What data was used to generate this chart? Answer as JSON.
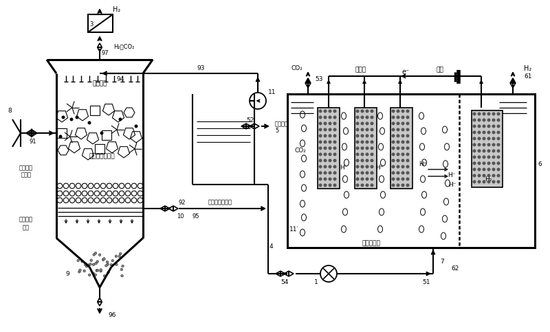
{
  "bg_color": "#ffffff",
  "labels": {
    "H2_top": "H₂",
    "H2CO2": "H₂＋CO₂",
    "n97": "97",
    "n3": "3",
    "n8": "8",
    "n94": "94",
    "n93": "93",
    "n11": "11",
    "n52": "52",
    "n91": "91",
    "n10": "10",
    "n92": "92",
    "n9": "9",
    "n96": "96",
    "n95": "95",
    "n4": "4",
    "n5": "5",
    "drip": "洹水顶淤",
    "solid": "固体有机废弃物",
    "anaerobe1": "厌气发酵",
    "anaerobe2": "产氢菌",
    "filter": "滤滤填料",
    "plate": "孔板",
    "leachate": "含有机酸滤滤液",
    "clean_out": "清水排放",
    "CO2_left": "CO₂",
    "n53": "53",
    "outer_circuit": "外电路",
    "power_src": "电源",
    "e_minus": "e⁻",
    "H2_right": "H₂",
    "n61": "61",
    "n6": "6",
    "n54": "54",
    "n1": "1",
    "n51": "51",
    "n7": "7",
    "n62": "62",
    "CO2_inner": "CO₂",
    "H_minus": "H⁻",
    "H_plus": "H⁺",
    "H2_inner": "H₂",
    "n11prime": "11′",
    "anaerobe_right": "厌氧产电菌"
  }
}
